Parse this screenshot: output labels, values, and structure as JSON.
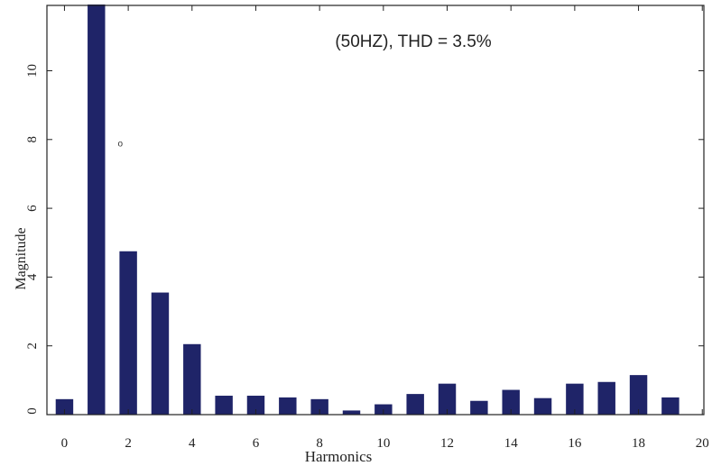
{
  "chart_data": {
    "type": "bar",
    "title": "(50HZ), THD = 3.5%",
    "xlabel": "Harmonics",
    "ylabel": "Magnitude",
    "x": [
      0,
      1,
      2,
      3,
      4,
      5,
      6,
      7,
      8,
      9,
      10,
      11,
      12,
      13,
      14,
      15,
      16,
      17,
      18,
      19
    ],
    "values": [
      0.45,
      12.0,
      4.75,
      3.55,
      2.05,
      0.55,
      0.55,
      0.5,
      0.45,
      0.12,
      0.3,
      0.6,
      0.9,
      0.4,
      0.72,
      0.48,
      0.9,
      0.95,
      1.15,
      0.5
    ],
    "xlim": [
      -0.55,
      20.05
    ],
    "ylim": [
      0,
      11.9
    ],
    "xticks": [
      0,
      2,
      4,
      6,
      8,
      10,
      12,
      14,
      16,
      18,
      20
    ],
    "xtick_labels": [
      "0",
      "2",
      "4",
      "6",
      "8",
      "10",
      "12",
      "14",
      "16",
      "18",
      "20"
    ],
    "yticks": [
      0,
      2,
      4,
      6,
      8,
      10
    ],
    "ytick_labels": [
      "0",
      "2",
      "4",
      "6",
      "8",
      "10"
    ],
    "annotations": [
      {
        "text": "o",
        "x": 1.75,
        "y": 7.8
      }
    ],
    "bar_color": "#1f2468",
    "grid": false
  }
}
